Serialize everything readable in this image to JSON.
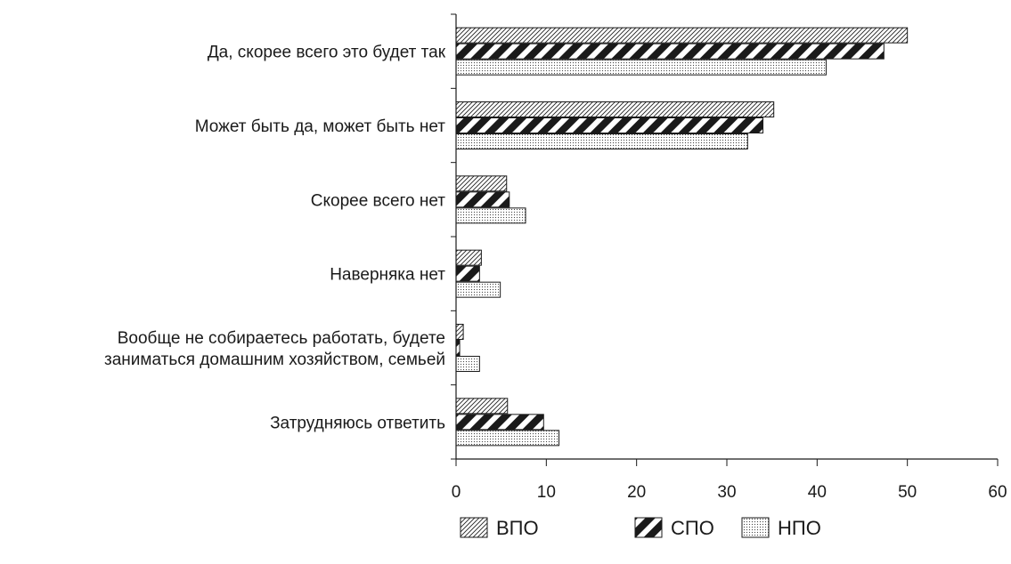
{
  "chart_data": {
    "type": "bar",
    "orientation": "horizontal",
    "title": "",
    "xlabel": "",
    "ylabel": "",
    "categories": [
      [
        "Да, скорее всего это будет так"
      ],
      [
        "Может быть да, может быть нет"
      ],
      [
        "Скорее всего нет"
      ],
      [
        "Наверняка нет"
      ],
      [
        "Вообще не собираетесь работать, будете",
        "заниматься домашним хозяйством, семьей"
      ],
      [
        "Затрудняюсь ответить"
      ]
    ],
    "series": [
      {
        "name": "ВПО",
        "pattern": "fine-diagonal-hatch",
        "values": [
          50.0,
          35.2,
          5.6,
          2.8,
          0.8,
          5.7
        ]
      },
      {
        "name": "СПО",
        "pattern": "bold-diagonal-stripes",
        "values": [
          47.4,
          34.0,
          5.9,
          2.6,
          0.4,
          9.7
        ]
      },
      {
        "name": "НПО",
        "pattern": "fine-dots",
        "values": [
          41.0,
          32.3,
          7.7,
          4.9,
          2.6,
          11.4
        ]
      }
    ],
    "xlim": [
      0,
      60
    ],
    "xticks": [
      0,
      10,
      20,
      30,
      40,
      50,
      60
    ],
    "grid": false,
    "legend": "bottom-center"
  }
}
